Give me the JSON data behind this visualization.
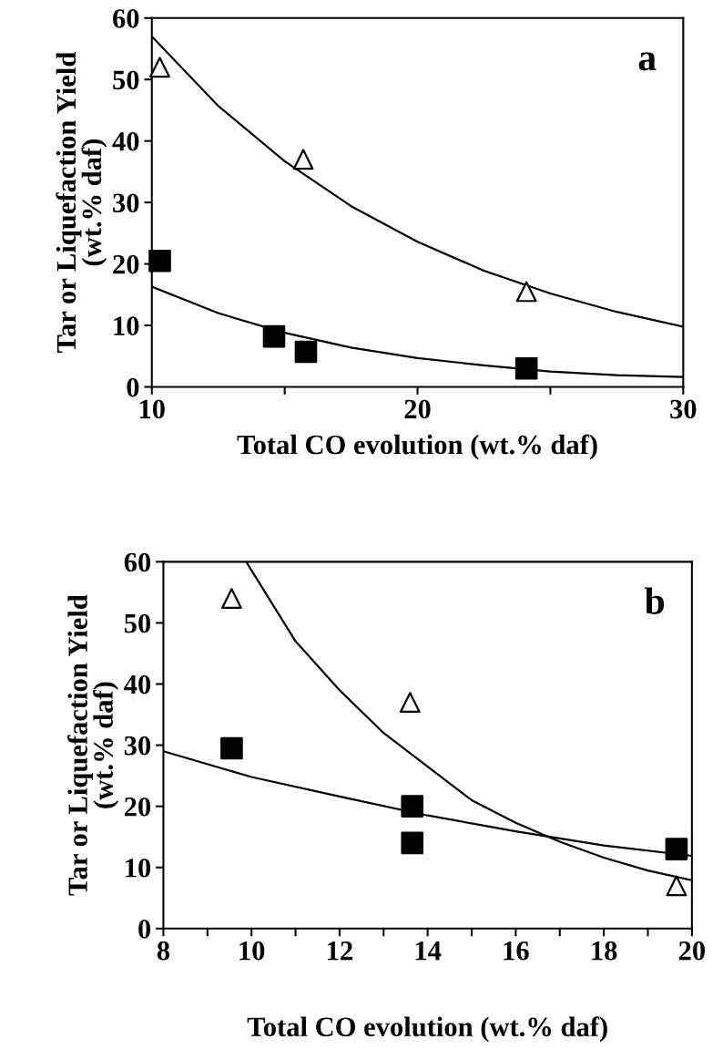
{
  "chart_data": [
    {
      "type": "scatter",
      "xlabel": "Total CO evolution (wt.% daf)",
      "ylabel": "Tar or Liquefaction Yield\n(wt.% daf)",
      "annotations": [
        "a"
      ],
      "xlim": [
        10,
        30
      ],
      "xticks": [
        10,
        {
          "value": 15,
          "label": null
        },
        20,
        {
          "value": 25,
          "label": null
        },
        30
      ],
      "ylim": [
        0,
        60
      ],
      "yticks": [
        0,
        10,
        20,
        30,
        40,
        50,
        60
      ],
      "grid": false,
      "legend": false,
      "series": [
        {
          "marker": "triangle",
          "color": "#000000",
          "x": [
            10.3,
            15.7,
            24.1
          ],
          "values": [
            52,
            37,
            15.5
          ]
        },
        {
          "marker": "square",
          "color": "#000000",
          "x": [
            10.3,
            14.6,
            15.8,
            24.1
          ],
          "values": [
            20.5,
            8.2,
            5.7,
            3
          ]
        },
        {
          "type": "line",
          "marker": "none",
          "line_style": "solid",
          "color": "#000000",
          "x": [
            10,
            12.5,
            15,
            17.5,
            20,
            22.5,
            25,
            27.5,
            30
          ],
          "values": [
            57,
            45.7,
            36.7,
            29.4,
            23.6,
            18.9,
            15.2,
            12.2,
            9.8
          ]
        },
        {
          "type": "line",
          "marker": "none",
          "line_style": "solid",
          "color": "#000000",
          "x": [
            10,
            12.5,
            15,
            17.5,
            20,
            22.5,
            25,
            27.5,
            30
          ],
          "values": [
            16.3,
            12.0,
            8.8,
            6.4,
            4.7,
            3.5,
            2.5,
            1.9,
            1.6
          ]
        }
      ]
    },
    {
      "type": "scatter",
      "xlabel": "Total CO evolution (wt.% daf)",
      "ylabel": "Tar or Liquefaction Yield\n(wt.% daf)",
      "annotations": [
        "b"
      ],
      "xlim": [
        8,
        20
      ],
      "xticks": [
        8,
        {
          "value": 9,
          "label": null
        },
        10,
        {
          "value": 11,
          "label": null
        },
        12,
        {
          "value": 13,
          "label": null
        },
        14,
        {
          "value": 15,
          "label": null
        },
        16,
        {
          "value": 17,
          "label": null
        },
        18,
        {
          "value": 19,
          "label": null
        },
        20
      ],
      "ylim": [
        0,
        60
      ],
      "yticks": [
        0,
        10,
        20,
        30,
        40,
        50,
        60
      ],
      "grid": false,
      "legend": false,
      "series": [
        {
          "marker": "triangle",
          "color": "#000000",
          "x": [
            9.55,
            13.6,
            19.65
          ],
          "values": [
            54,
            37,
            7
          ]
        },
        {
          "marker": "square",
          "color": "#000000",
          "x": [
            9.55,
            13.65,
            13.65,
            19.65
          ],
          "values": [
            29.5,
            20,
            14,
            13
          ]
        },
        {
          "type": "line",
          "marker": "none",
          "line_style": "solid",
          "color": "#000000",
          "x": [
            9.88,
            11,
            12,
            13,
            14,
            15,
            16,
            17,
            18,
            19,
            20
          ],
          "values": [
            60,
            47,
            39,
            32,
            26.5,
            21,
            17.3,
            14.2,
            11.6,
            9.5,
            7.9
          ]
        },
        {
          "type": "line",
          "marker": "none",
          "line_style": "solid",
          "color": "#000000",
          "x": [
            8,
            10,
            12,
            14,
            16,
            18,
            20
          ],
          "values": [
            29,
            24.8,
            21.6,
            18.5,
            15.9,
            13.6,
            11.9
          ]
        }
      ]
    }
  ]
}
